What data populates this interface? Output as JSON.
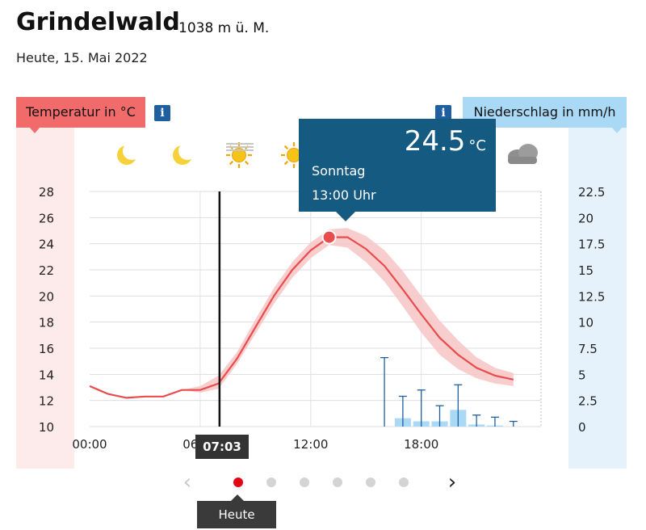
{
  "header": {
    "place": "Grindelwald",
    "elevation": "1038 m ü. M.",
    "date": "Heute, 15. Mai 2022"
  },
  "axes": {
    "left_label": "Temperatur in °C",
    "right_label": "Niederschlag in mm/h",
    "info_glyph": "i"
  },
  "icons": [
    "moon-icon",
    "moon-icon",
    "sun-haze-icon",
    "sun-icon",
    "cloud-icon"
  ],
  "tooltip": {
    "value": "24.5",
    "unit": "°C",
    "day": "Sonntag",
    "time": "13:00 Uhr"
  },
  "now_marker": "07:03",
  "pager": {
    "active_label": "Heute",
    "prev_glyph": "‹",
    "next_glyph": "›",
    "dot_count": 6,
    "active_index": 0
  },
  "colors": {
    "temperature": "#e84c4c",
    "temperature_band": "#f7c4c4",
    "precip": "#a9d9f5",
    "precip_whisker": "#1f5fa0",
    "tooltip_bg": "#155a80"
  },
  "chart_data": {
    "type": "line",
    "x_tick_labels": [
      "00:00",
      "06:00",
      "12:00",
      "18:00"
    ],
    "x_ticks": [
      0,
      6,
      12,
      18
    ],
    "xlim": [
      0,
      24.5
    ],
    "temperature": {
      "ylim": [
        10,
        28
      ],
      "y_ticks": [
        10,
        12,
        14,
        16,
        18,
        20,
        22,
        24,
        26,
        28
      ],
      "x": [
        0,
        1,
        2,
        3,
        4,
        5,
        6,
        7,
        8,
        9,
        10,
        11,
        12,
        13,
        14,
        15,
        16,
        17,
        18,
        19,
        20,
        21,
        22,
        23
      ],
      "values": [
        13.1,
        12.5,
        12.2,
        12.3,
        12.3,
        12.8,
        12.8,
        13.3,
        15.2,
        17.6,
        20.0,
        22.0,
        23.5,
        24.5,
        24.5,
        23.6,
        22.3,
        20.5,
        18.6,
        16.8,
        15.5,
        14.5,
        13.9,
        13.6
      ],
      "band_low": [
        13.1,
        12.5,
        12.2,
        12.3,
        12.3,
        12.8,
        12.6,
        12.9,
        14.8,
        17.1,
        19.4,
        21.4,
        22.9,
        23.9,
        23.7,
        22.6,
        21.1,
        19.2,
        17.2,
        15.5,
        14.4,
        13.7,
        13.3,
        13.1
      ],
      "band_high": [
        13.1,
        12.5,
        12.2,
        12.3,
        12.3,
        12.8,
        13.1,
        13.9,
        15.7,
        18.2,
        20.6,
        22.6,
        24.1,
        25.1,
        25.2,
        24.6,
        23.5,
        21.9,
        20.0,
        18.1,
        16.6,
        15.3,
        14.5,
        14.1
      ],
      "highlight": {
        "x": 13,
        "y": 24.5
      }
    },
    "precipitation": {
      "ylim": [
        0,
        22.5
      ],
      "y_ticks": [
        0,
        2.5,
        5,
        7.5,
        10,
        12.5,
        15,
        17.5,
        20,
        22.5
      ],
      "x": [
        16,
        17,
        18,
        19,
        20,
        21,
        22,
        23
      ],
      "values": [
        0,
        0.8,
        0.5,
        0.5,
        1.6,
        0.2,
        0.1,
        0
      ],
      "max": [
        6.6,
        2.9,
        3.5,
        2.0,
        4.0,
        1.1,
        0.9,
        0.5
      ]
    },
    "now_x": 7.05
  }
}
